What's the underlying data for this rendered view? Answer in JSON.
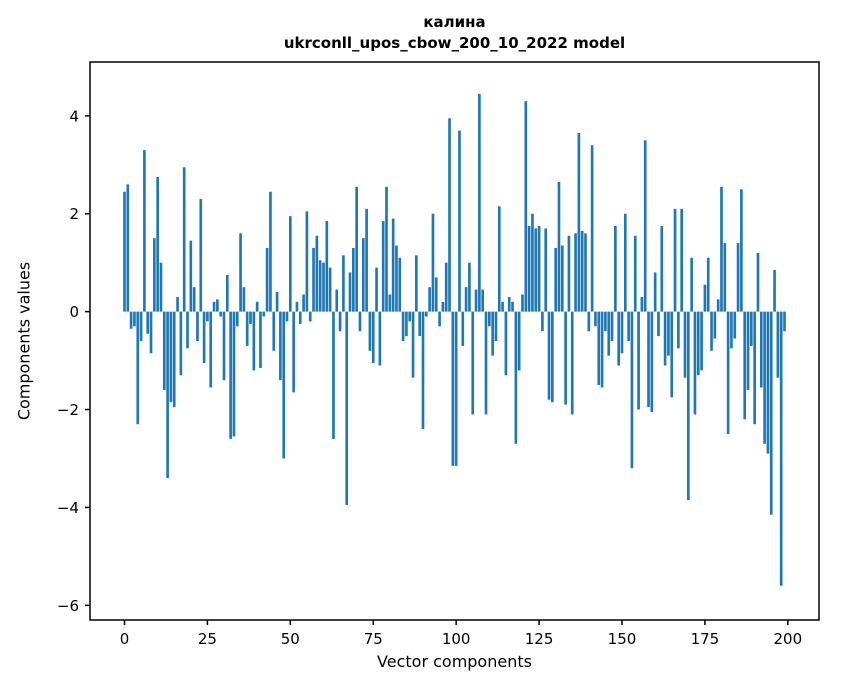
{
  "chart_data": {
    "type": "bar",
    "title": "калина",
    "subtitle": "ukrconll_upos_cbow_200_10_2022 model",
    "xlabel": "Vector components",
    "ylabel": "Components values",
    "bar_color": "#1f77b4",
    "axis_color": "#000000",
    "grid": false,
    "legend": false,
    "xlim": [
      -10.4,
      209.4
    ],
    "ylim": [
      -6.3,
      5.1
    ],
    "bar_width": 0.8,
    "x_ticks": [
      0,
      25,
      50,
      75,
      100,
      125,
      150,
      175,
      200
    ],
    "x_tick_labels": [
      "0",
      "25",
      "50",
      "75",
      "100",
      "125",
      "150",
      "175",
      "200"
    ],
    "y_ticks": [
      -6,
      -4,
      -2,
      0,
      2,
      4
    ],
    "y_tick_labels": [
      "−6",
      "−4",
      "−2",
      "0",
      "2",
      "4"
    ],
    "values": [
      2.45,
      2.6,
      -0.35,
      -0.3,
      -2.3,
      -0.6,
      3.3,
      -0.45,
      -0.85,
      1.5,
      2.75,
      1.0,
      -1.6,
      -3.4,
      -1.85,
      -1.95,
      0.3,
      -1.3,
      2.95,
      -0.75,
      1.45,
      0.5,
      -0.6,
      2.3,
      -1.05,
      -0.2,
      -1.55,
      0.2,
      0.25,
      -0.1,
      -1.4,
      0.75,
      -2.6,
      -2.55,
      -0.3,
      1.6,
      0.5,
      -0.7,
      -0.25,
      -1.2,
      0.2,
      -1.15,
      -0.1,
      1.3,
      2.45,
      -0.8,
      0.4,
      -1.4,
      -3.0,
      -0.2,
      1.95,
      -1.65,
      0.2,
      -0.25,
      0.35,
      2.05,
      -0.2,
      1.3,
      1.55,
      1.05,
      1.0,
      1.85,
      0.9,
      -2.6,
      0.45,
      -0.4,
      1.15,
      -3.95,
      0.8,
      1.3,
      2.55,
      -0.4,
      1.5,
      2.1,
      -0.8,
      -1.05,
      0.9,
      -1.1,
      1.85,
      2.55,
      0.35,
      1.9,
      1.35,
      1.1,
      -0.6,
      -0.5,
      -0.2,
      -1.35,
      1.15,
      -0.5,
      -2.4,
      -0.1,
      0.5,
      2.0,
      0.7,
      -0.3,
      0.2,
      1.0,
      3.95,
      -3.15,
      -3.15,
      3.7,
      -0.7,
      0.5,
      1.0,
      -2.1,
      0.45,
      4.45,
      0.45,
      -2.1,
      -0.3,
      -0.9,
      -0.6,
      2.15,
      0.2,
      -1.3,
      0.3,
      0.2,
      -2.7,
      -1.2,
      0.35,
      4.3,
      1.75,
      2.0,
      1.7,
      1.75,
      -0.4,
      1.7,
      -1.8,
      -1.85,
      1.3,
      2.65,
      1.35,
      -1.9,
      1.55,
      -2.1,
      1.6,
      3.65,
      1.65,
      1.6,
      -0.4,
      3.4,
      -0.3,
      -1.5,
      -1.55,
      -0.4,
      -0.9,
      -0.6,
      1.75,
      -1.1,
      -0.85,
      2.0,
      -0.6,
      -3.2,
      1.55,
      -2.0,
      0.3,
      3.5,
      -1.95,
      -2.05,
      0.8,
      -0.5,
      1.75,
      -1.1,
      -0.9,
      -1.75,
      2.1,
      -0.75,
      2.1,
      -1.35,
      -3.85,
      1.1,
      -2.1,
      -1.3,
      -1.2,
      0.55,
      1.1,
      -0.8,
      -0.55,
      0.25,
      2.55,
      1.4,
      -2.5,
      -0.75,
      -0.55,
      1.4,
      2.5,
      -2.2,
      -1.6,
      -0.7,
      -2.3,
      1.2,
      -1.55,
      -2.7,
      -2.9,
      -4.15,
      0.85,
      -1.35,
      -5.6,
      -0.4
    ]
  }
}
